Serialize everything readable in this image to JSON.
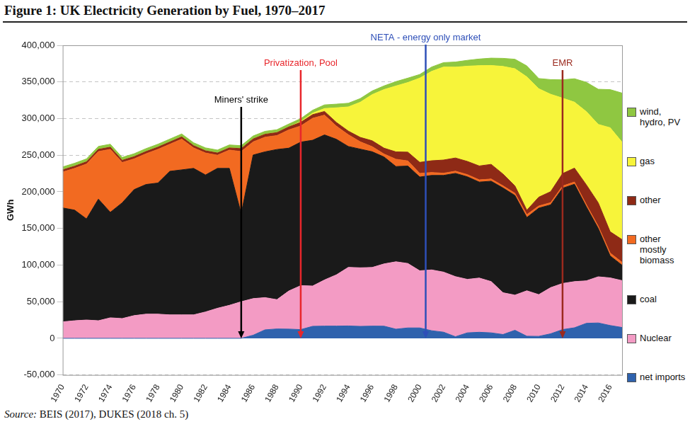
{
  "chart_data": {
    "type": "area",
    "title": "Figure 1: UK Electricity Generation by Fuel, 1970–2017",
    "source": "Source: BEIS (2017), DUKES (2018 ch. 5)",
    "y_label": "GWh",
    "stacked": true,
    "grid": true,
    "legend": "right",
    "x": [
      1970,
      1971,
      1972,
      1973,
      1974,
      1975,
      1976,
      1977,
      1978,
      1979,
      1980,
      1981,
      1982,
      1983,
      1984,
      1985,
      1986,
      1987,
      1988,
      1989,
      1990,
      1991,
      1992,
      1993,
      1994,
      1995,
      1996,
      1997,
      1998,
      1999,
      2000,
      2001,
      2002,
      2003,
      2004,
      2005,
      2006,
      2007,
      2008,
      2009,
      2010,
      2011,
      2012,
      2013,
      2014,
      2015,
      2016,
      2017
    ],
    "xlim": [
      1970,
      2017
    ],
    "xticks": [
      1970,
      1972,
      1974,
      1976,
      1978,
      1980,
      1982,
      1984,
      1986,
      1988,
      1990,
      1992,
      1994,
      1996,
      1998,
      2000,
      2002,
      2004,
      2006,
      2008,
      2010,
      2012,
      2014,
      2016
    ],
    "ylim": [
      -50000,
      400000
    ],
    "yticks": [
      {
        "value": -50000,
        "label": "-50,000"
      },
      0,
      {
        "value": 50000,
        "label": "50,000"
      },
      {
        "value": 100000,
        "label": "100,000"
      },
      {
        "value": 150000,
        "label": "150,000"
      },
      {
        "value": 200000,
        "label": "200,000"
      },
      {
        "value": 250000,
        "label": "250,000"
      },
      {
        "value": 300000,
        "label": "300,000"
      },
      {
        "value": 350000,
        "label": "350,000"
      },
      {
        "value": 400000,
        "label": "400,000"
      }
    ],
    "series": [
      {
        "name": "net imports",
        "color": "#2f62ad",
        "values": [
          0,
          0,
          0,
          0,
          0,
          0,
          0,
          0,
          0,
          0,
          0,
          0,
          0,
          0,
          0,
          0,
          4200,
          11600,
          12800,
          12600,
          11900,
          16400,
          16700,
          16700,
          16900,
          16300,
          16700,
          16600,
          12500,
          14200,
          14200,
          10400,
          8400,
          2200,
          7500,
          8300,
          7500,
          5200,
          11000,
          2900,
          2700,
          6200,
          11900,
          14400,
          20500,
          21000,
          17500,
          14800
        ]
      },
      {
        "name": "Nuclear",
        "color": "#f39bc4",
        "values": [
          22500,
          24000,
          25000,
          24000,
          28000,
          27000,
          31000,
          33000,
          33000,
          32000,
          32000,
          32000,
          36000,
          41000,
          45000,
          50000,
          50000,
          44000,
          40000,
          52000,
          60000,
          55000,
          63000,
          70000,
          80000,
          80000,
          80000,
          85000,
          92000,
          88000,
          78000,
          83000,
          82000,
          82000,
          73000,
          74000,
          70000,
          57000,
          48000,
          62000,
          57000,
          63000,
          63000,
          63000,
          58000,
          63000,
          65000,
          64000
        ]
      },
      {
        "name": "coal",
        "color": "#1a1a1a",
        "values": [
          155500,
          151000,
          138000,
          166000,
          144000,
          158000,
          172000,
          177000,
          179000,
          196000,
          198000,
          200000,
          187000,
          191000,
          187000,
          120000,
          196000,
          199000,
          205000,
          195000,
          196000,
          199000,
          198000,
          185000,
          165000,
          162000,
          158000,
          146000,
          130000,
          133000,
          128000,
          129000,
          132000,
          141000,
          140000,
          131000,
          137000,
          143000,
          136000,
          100000,
          118000,
          113000,
          130000,
          133000,
          101000,
          66000,
          30000,
          21000
        ]
      },
      {
        "name": "other mostly biomass",
        "color": "#f26a21",
        "values": [
          49000,
          57000,
          75000,
          65000,
          86000,
          55000,
          42000,
          42000,
          46000,
          37000,
          42000,
          28000,
          30000,
          18000,
          25000,
          85000,
          18000,
          20000,
          19000,
          25000,
          22000,
          30000,
          27000,
          18000,
          16000,
          10000,
          7000,
          4000,
          10000,
          7000,
          5000,
          4000,
          3000,
          3000,
          3000,
          3000,
          3000,
          3000,
          3000,
          4000,
          3000,
          3000,
          3000,
          3000,
          3000,
          3000,
          4000,
          4000
        ]
      },
      {
        "name": "other",
        "color": "#8e2a16",
        "values": [
          3000,
          3000,
          3000,
          3000,
          3000,
          3000,
          3000,
          3000,
          3000,
          3000,
          3000,
          3000,
          3000,
          3000,
          3000,
          4000,
          4000,
          4000,
          4000,
          4000,
          5000,
          5000,
          5000,
          5000,
          5000,
          6000,
          8000,
          8000,
          10000,
          12000,
          15000,
          16000,
          18000,
          18000,
          18000,
          19000,
          20000,
          16000,
          10000,
          6000,
          12000,
          15000,
          17000,
          19000,
          27000,
          32000,
          29000,
          31000
        ]
      },
      {
        "name": "gas",
        "color": "#f7f43a",
        "values": [
          0,
          0,
          0,
          0,
          0,
          0,
          0,
          0,
          0,
          0,
          0,
          0,
          0,
          0,
          0,
          0,
          0,
          0,
          0,
          0,
          1000,
          2000,
          4000,
          20000,
          33000,
          48000,
          63000,
          80000,
          90000,
          95000,
          115000,
          122000,
          127000,
          124000,
          130000,
          137000,
          135000,
          147000,
          160000,
          182000,
          148000,
          133000,
          103000,
          90000,
          100000,
          107000,
          142000,
          133000
        ]
      },
      {
        "name": "wind, hydro, PV",
        "color": "#8fc741",
        "values": [
          4000,
          4000,
          4000,
          4000,
          4000,
          4000,
          4000,
          4000,
          4000,
          4000,
          4000,
          4000,
          4000,
          4000,
          4000,
          4000,
          4000,
          4000,
          4000,
          4000,
          4000,
          4000,
          5000,
          5000,
          5000,
          5000,
          5000,
          5000,
          6000,
          6000,
          5000,
          6000,
          6000,
          7000,
          8000,
          9000,
          10000,
          11000,
          13000,
          15000,
          14000,
          20000,
          25000,
          32000,
          40000,
          48000,
          52000,
          67000
        ]
      }
    ],
    "annotations": [
      {
        "text": "Miners' strike",
        "x": 1985,
        "y": 0,
        "color": "#000000"
      },
      {
        "text": "Privatization, Pool",
        "x": 1990,
        "y": 0,
        "color": "#e8262b"
      },
      {
        "text": "NETA - energy only market",
        "x": 2000.5,
        "y": 0,
        "color": "#2e4fb8"
      },
      {
        "text": "EMR",
        "x": 2012,
        "y": 0,
        "color": "#9b2a1e"
      }
    ]
  }
}
